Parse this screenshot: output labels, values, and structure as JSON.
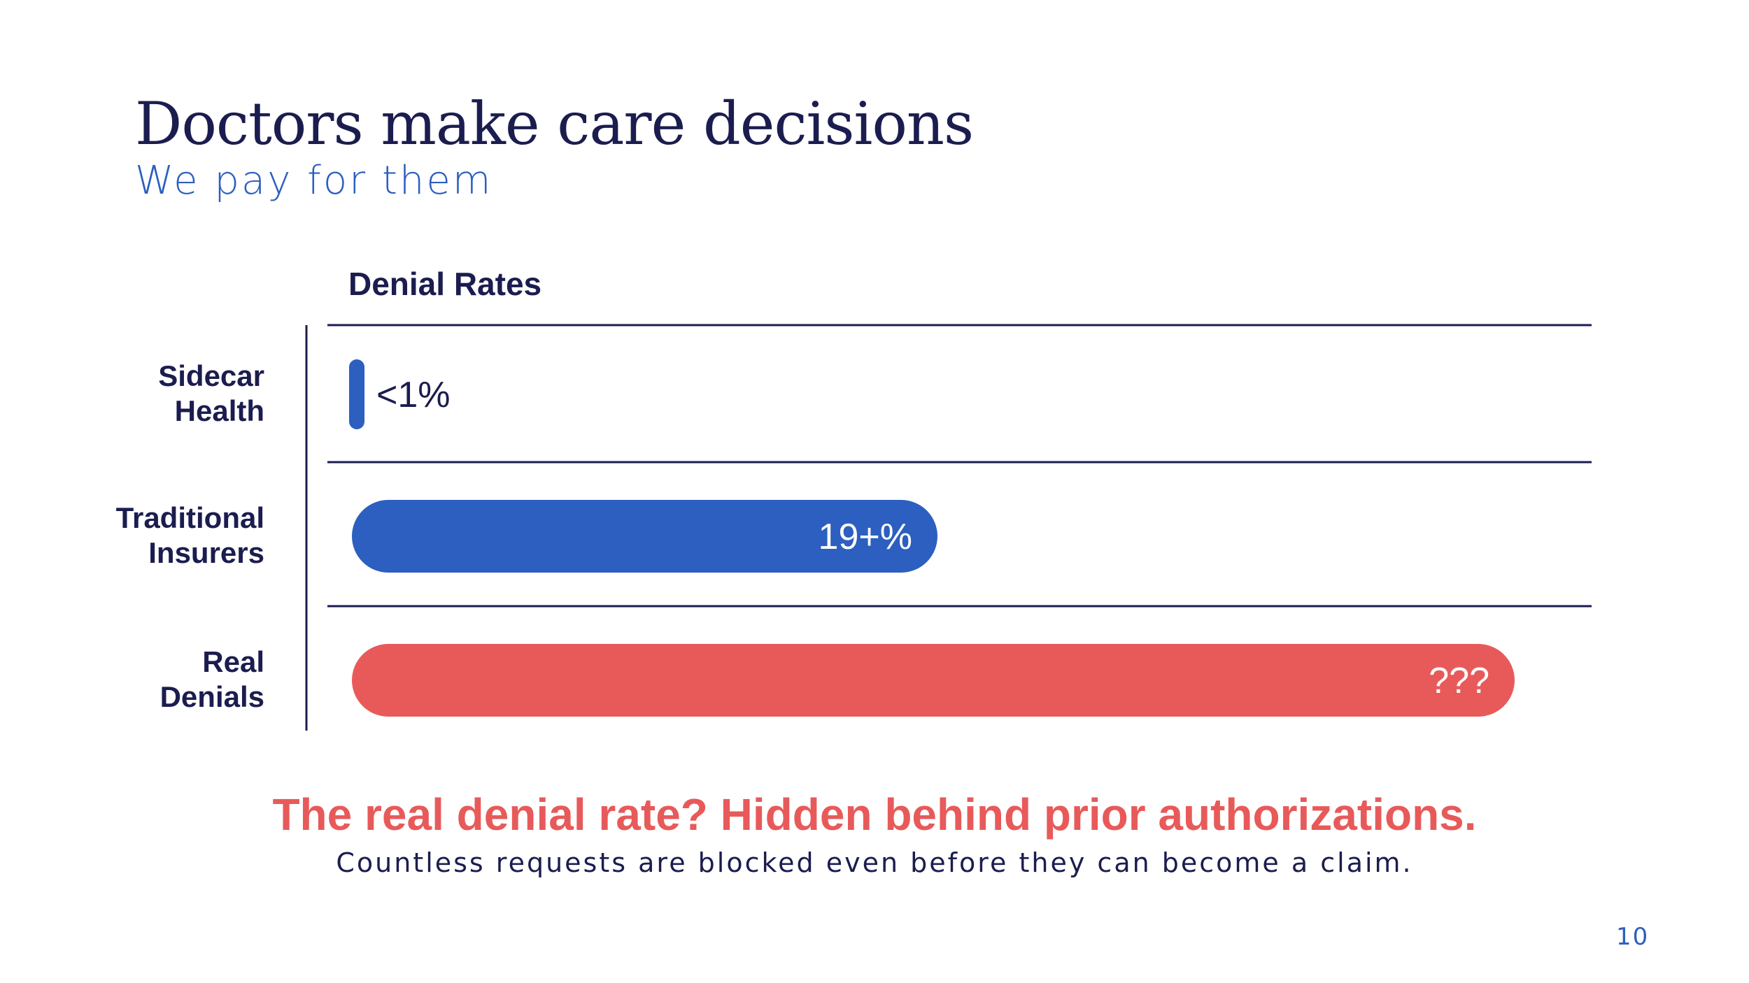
{
  "slide": {
    "title": "Doctors make care decisions",
    "subtitle": "We pay for them",
    "callout": "The real denial rate? Hidden behind prior authorizations.",
    "callout_sub": "Countless requests are blocked even before they can become a claim.",
    "page_number": "10"
  },
  "colors": {
    "navy": "#1b1d4f",
    "blue": "#2c5fbf",
    "coral": "#e85a5a"
  },
  "chart_data": {
    "type": "bar",
    "orientation": "horizontal",
    "title": "Denial Rates",
    "categories": [
      "Sidecar Health",
      "Traditional Insurers",
      "Real Denials"
    ],
    "category_lines": [
      [
        "Sidecar",
        "Health"
      ],
      [
        "Traditional",
        "Insurers"
      ],
      [
        "Real",
        "Denials"
      ]
    ],
    "series": [
      {
        "values": [
          1,
          19,
          null
        ],
        "value_labels": [
          "<1%",
          "19+%",
          "???"
        ],
        "colors": [
          "#2c5fbf",
          "#2c5fbf",
          "#e85a5a"
        ]
      }
    ],
    "grid": true
  }
}
